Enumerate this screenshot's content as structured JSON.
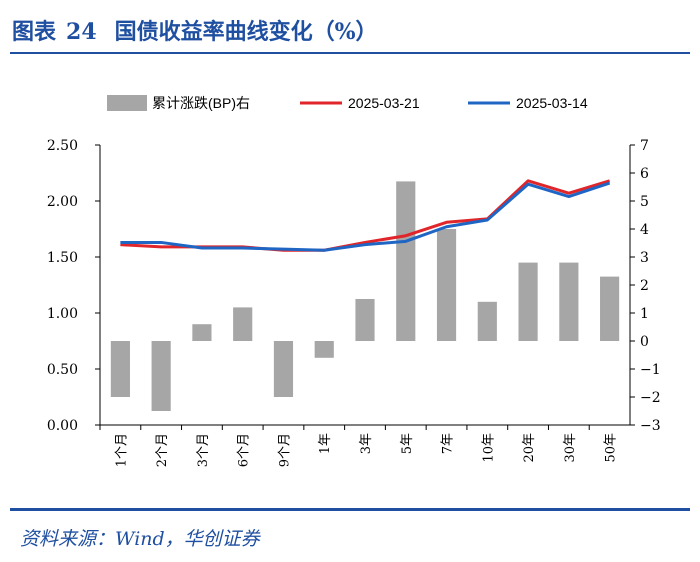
{
  "header": {
    "fig_label": "图表",
    "fig_number": "24",
    "title": "国债收益率曲线变化（%）"
  },
  "source": "资料来源：Wind，华创证券",
  "chart_data": {
    "type": "bar+line",
    "categories": [
      "1个月",
      "2个月",
      "3个月",
      "6个月",
      "9个月",
      "1年",
      "3年",
      "5年",
      "7年",
      "10年",
      "20年",
      "30年",
      "50年"
    ],
    "series": [
      {
        "name": "累计涨跌(BP)右",
        "type": "bar",
        "axis": "right",
        "color": "#a6a6a6",
        "values": [
          -2.0,
          -2.5,
          0.6,
          1.2,
          -2.0,
          -0.6,
          1.5,
          5.7,
          4.0,
          1.4,
          2.8,
          2.8,
          2.3
        ]
      },
      {
        "name": "2025-03-21",
        "type": "line",
        "axis": "left",
        "color": "#e0262a",
        "values": [
          1.61,
          1.59,
          1.59,
          1.59,
          1.56,
          1.56,
          1.63,
          1.69,
          1.81,
          1.84,
          2.18,
          2.07,
          2.18
        ]
      },
      {
        "name": "2025-03-14",
        "type": "line",
        "axis": "left",
        "color": "#1f66c4",
        "values": [
          1.63,
          1.63,
          1.58,
          1.58,
          1.57,
          1.56,
          1.61,
          1.64,
          1.77,
          1.83,
          2.15,
          2.04,
          2.16
        ]
      }
    ],
    "left_axis": {
      "ylim": [
        0,
        2.5
      ],
      "ticks": [
        "0.00",
        "0.50",
        "1.00",
        "1.50",
        "2.00",
        "2.50"
      ]
    },
    "right_axis": {
      "ylim": [
        -3,
        7
      ],
      "ticks": [
        "-3",
        "-2",
        "-1",
        "0",
        "1",
        "2",
        "3",
        "4",
        "5",
        "6",
        "7"
      ]
    },
    "legend_position": "top",
    "grid": false
  }
}
